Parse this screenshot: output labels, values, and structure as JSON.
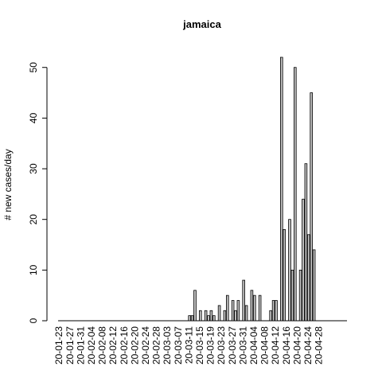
{
  "chart_data": {
    "type": "bar",
    "title": "jamaica",
    "xlabel": "",
    "ylabel": "# new cases/day",
    "ylim": [
      0,
      52
    ],
    "y_ticks": [
      0,
      10,
      20,
      30,
      40,
      50
    ],
    "grid": false,
    "legend": "none",
    "bar_fill": "#bebebe",
    "bar_stroke": "#000000",
    "start_date": "2020-01-23",
    "x_tick_labels": [
      "20-01-23",
      "20-01-27",
      "20-01-31",
      "20-02-04",
      "20-02-08",
      "20-02-12",
      "20-02-16",
      "20-02-20",
      "20-02-24",
      "20-02-28",
      "20-03-03",
      "20-03-07",
      "20-03-11",
      "20-03-15",
      "20-03-19",
      "20-03-23",
      "20-03-27",
      "20-03-31",
      "20-04-04",
      "20-04-08",
      "20-04-12",
      "20-04-16",
      "20-04-20",
      "20-04-24",
      "20-04-28"
    ],
    "values": [
      0,
      0,
      0,
      0,
      0,
      0,
      0,
      0,
      0,
      0,
      0,
      0,
      0,
      0,
      0,
      0,
      0,
      0,
      0,
      0,
      0,
      0,
      0,
      0,
      0,
      0,
      0,
      0,
      0,
      0,
      0,
      0,
      0,
      0,
      0,
      0,
      0,
      0,
      0,
      0,
      0,
      0,
      0,
      0,
      0,
      0,
      0,
      0,
      1,
      1,
      6,
      0,
      2,
      0,
      2,
      1,
      2,
      1,
      0,
      3,
      0,
      2,
      5,
      0,
      4,
      2,
      4,
      0,
      8,
      3,
      0,
      6,
      5,
      0,
      5,
      0,
      0,
      0,
      2,
      4,
      4,
      0,
      52,
      18,
      0,
      20,
      10,
      50,
      0,
      10,
      24,
      31,
      17,
      45,
      14,
      0
    ]
  }
}
